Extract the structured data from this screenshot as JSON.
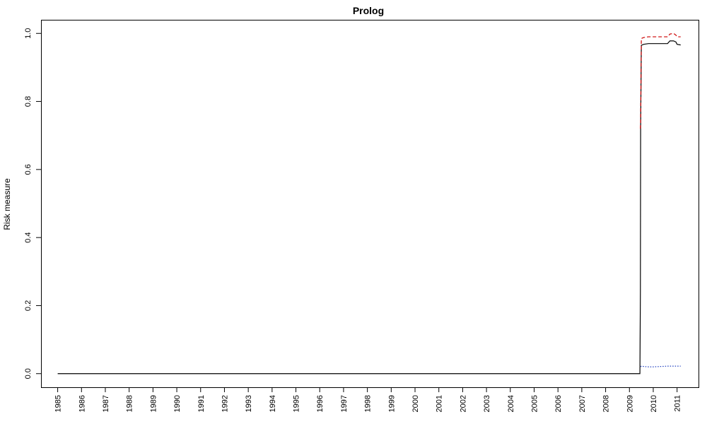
{
  "chart_data": {
    "type": "line",
    "title": "Prolog",
    "xlabel": "",
    "ylabel": "Risk measure",
    "xlim": [
      1984.3,
      2011.9
    ],
    "ylim": [
      -0.04,
      1.04
    ],
    "x_ticks": [
      1985,
      1986,
      1987,
      1988,
      1989,
      1990,
      1991,
      1992,
      1993,
      1994,
      1995,
      1996,
      1997,
      1998,
      1999,
      2000,
      2001,
      2002,
      2003,
      2004,
      2005,
      2006,
      2007,
      2008,
      2009,
      2010,
      2011
    ],
    "x_tick_labels": [
      "1985",
      "1986",
      "1987",
      "1988",
      "1989",
      "1990",
      "1991",
      "1992",
      "1993",
      "1994",
      "1995",
      "1996",
      "1997",
      "1998",
      "1999",
      "2000",
      "2001",
      "2002",
      "2003",
      "2004",
      "2005",
      "2006",
      "2007",
      "2008",
      "2009",
      "2010",
      "2011"
    ],
    "y_ticks": [
      0.0,
      0.2,
      0.4,
      0.6,
      0.8,
      1.0
    ],
    "y_tick_labels": [
      "0.0",
      "0.2",
      "0.4",
      "0.6",
      "0.8",
      "1.0"
    ],
    "grid": false,
    "legend": "none",
    "series": [
      {
        "line_style": "solid",
        "color": "#000000",
        "x": [
          1985.0,
          2009.44,
          2009.46,
          2009.47,
          2009.5,
          2009.6,
          2009.8,
          2010.0,
          2010.3,
          2010.6,
          2010.7,
          2010.85,
          2010.95,
          2011.0,
          2011.15
        ],
        "y": [
          0.0,
          0.0,
          0.24,
          0.72,
          0.965,
          0.968,
          0.97,
          0.97,
          0.97,
          0.97,
          0.978,
          0.978,
          0.975,
          0.968,
          0.966
        ]
      },
      {
        "line_style": "dashed",
        "color": "#cc0000",
        "x": [
          2009.46,
          2009.47,
          2009.5,
          2009.6,
          2009.8,
          2010.0,
          2010.3,
          2010.6,
          2010.7,
          2010.85,
          2010.95,
          2011.0,
          2011.15
        ],
        "y": [
          0.72,
          0.74,
          0.985,
          0.988,
          0.99,
          0.99,
          0.99,
          0.99,
          0.998,
          1.0,
          0.995,
          0.99,
          0.99
        ]
      },
      {
        "line_style": "dotted",
        "color": "#1f3fbf",
        "x": [
          2009.47,
          2009.5,
          2009.6,
          2009.8,
          2010.0,
          2010.3,
          2010.6,
          2010.9,
          2011.15
        ],
        "y": [
          0.02,
          0.022,
          0.021,
          0.02,
          0.02,
          0.021,
          0.022,
          0.022,
          0.022
        ]
      }
    ]
  }
}
